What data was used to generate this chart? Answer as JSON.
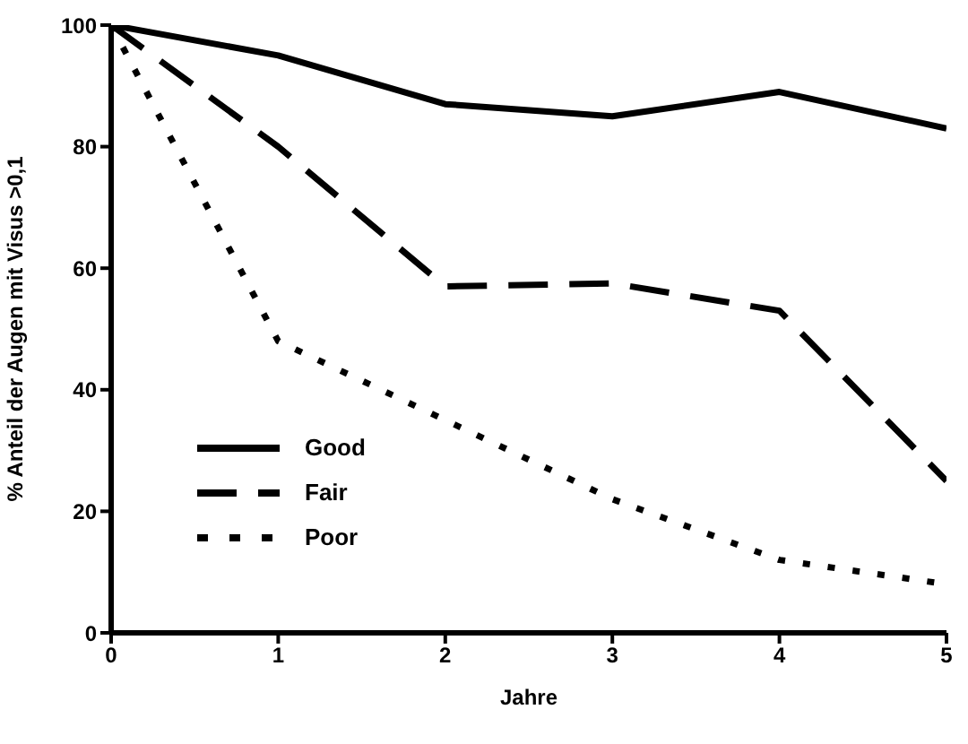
{
  "chart_data": {
    "type": "line",
    "xlabel": "Jahre",
    "ylabel": "% Anteil der Augen mit Visus >0,1",
    "x": [
      0,
      1,
      2,
      3,
      4,
      5
    ],
    "series": [
      {
        "name": "Good",
        "color": "#000000",
        "line_style": "solid",
        "values": [
          100,
          95,
          87,
          85,
          89,
          83
        ]
      },
      {
        "name": "Fair",
        "color": "#000000",
        "line_style": "dashed",
        "values": [
          100,
          80,
          57,
          57.5,
          53,
          25
        ]
      },
      {
        "name": "Poor",
        "color": "#000000",
        "line_style": "dotted",
        "values": [
          100,
          48,
          35,
          22,
          12,
          8
        ]
      }
    ],
    "xlim": [
      0,
      5
    ],
    "xticks": [
      0,
      1,
      2,
      3,
      4,
      5
    ],
    "ylim": [
      0,
      100
    ],
    "yticks": [
      0,
      20,
      40,
      60,
      80,
      100
    ],
    "legend": "bottom left",
    "grid": false,
    "marker": "none"
  }
}
